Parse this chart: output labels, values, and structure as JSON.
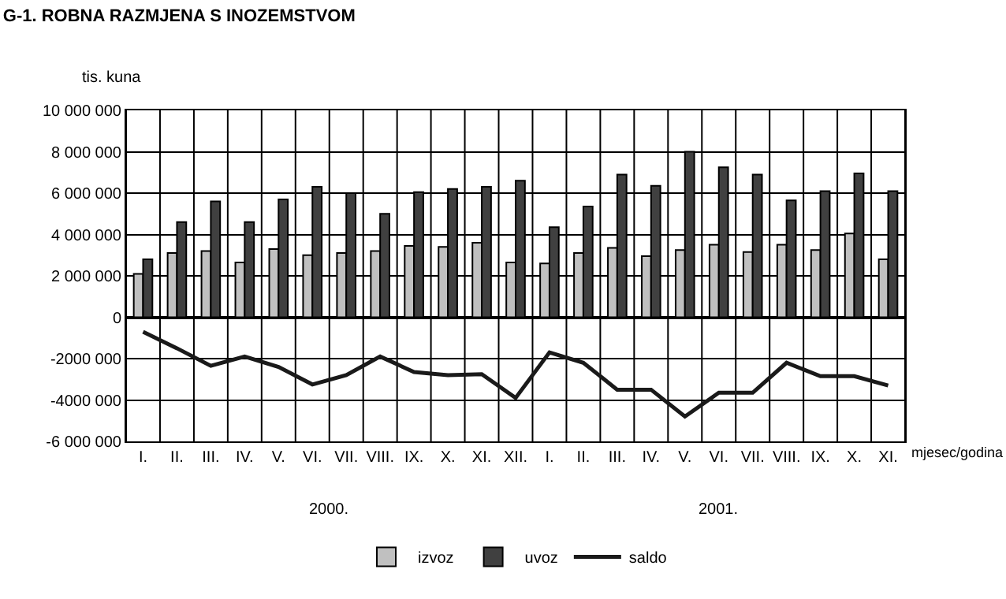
{
  "chart_data": {
    "type": "bar",
    "title": "G-1. ROBNA RAZMJENA S INOZEMSTVOM",
    "ylabel": "tis. kuna",
    "xlabel": "mjesec/godina",
    "categories": [
      "I.",
      "II.",
      "III.",
      "IV.",
      "V.",
      "VI.",
      "VII.",
      "VIII.",
      "IX.",
      "X.",
      "XI.",
      "XII.",
      "I.",
      "II.",
      "III.",
      "IV.",
      "V.",
      "VI.",
      "VII.",
      "VIII.",
      "IX.",
      "X.",
      "XI."
    ],
    "series": [
      {
        "name": "izvoz",
        "color": "#c0c0c0",
        "values": [
          2100000,
          3100000,
          3200000,
          2650000,
          3300000,
          3000000,
          3100000,
          3200000,
          3450000,
          3400000,
          3600000,
          2650000,
          2600000,
          3100000,
          3350000,
          2950000,
          3250000,
          3500000,
          3150000,
          3500000,
          3250000,
          4050000,
          2800000
        ]
      },
      {
        "name": "uvoz",
        "color": "#404040",
        "values": [
          2800000,
          4600000,
          5600000,
          4600000,
          5700000,
          6300000,
          6000000,
          5000000,
          6050000,
          6200000,
          6300000,
          6600000,
          4350000,
          5350000,
          6900000,
          6350000,
          8000000,
          7250000,
          6900000,
          5650000,
          6100000,
          6950000,
          6100000
        ]
      },
      {
        "name": "saldo",
        "type": "line",
        "color": "#1a1a1a",
        "values": [
          -700000,
          -1500000,
          -2350000,
          -1900000,
          -2400000,
          -3250000,
          -2800000,
          -1900000,
          -2650000,
          -2800000,
          -2750000,
          -3900000,
          -1700000,
          -2200000,
          -3500000,
          -3500000,
          -4800000,
          -3650000,
          -3650000,
          -2200000,
          -2850000,
          -2850000,
          -3300000
        ]
      }
    ],
    "ylim": [
      -6000000,
      10000000
    ],
    "yticks": [
      {
        "value": -6000000,
        "label": "-6 000 000"
      },
      {
        "value": -4000000,
        "label": "-4000 000"
      },
      {
        "value": -2000000,
        "label": "-2000 000"
      },
      0,
      {
        "value": 2000000,
        "label": "2 000 000"
      },
      {
        "value": 4000000,
        "label": "4 000 000"
      },
      {
        "value": 6000000,
        "label": "6 000 000"
      },
      {
        "value": 8000000,
        "label": "8 000 000"
      },
      {
        "value": 10000000,
        "label": "10 000 000"
      }
    ],
    "annotations": [
      "2000.",
      "2001."
    ],
    "grid": true,
    "legend": "bottom",
    "marker": "none",
    "line_style": "solid"
  }
}
